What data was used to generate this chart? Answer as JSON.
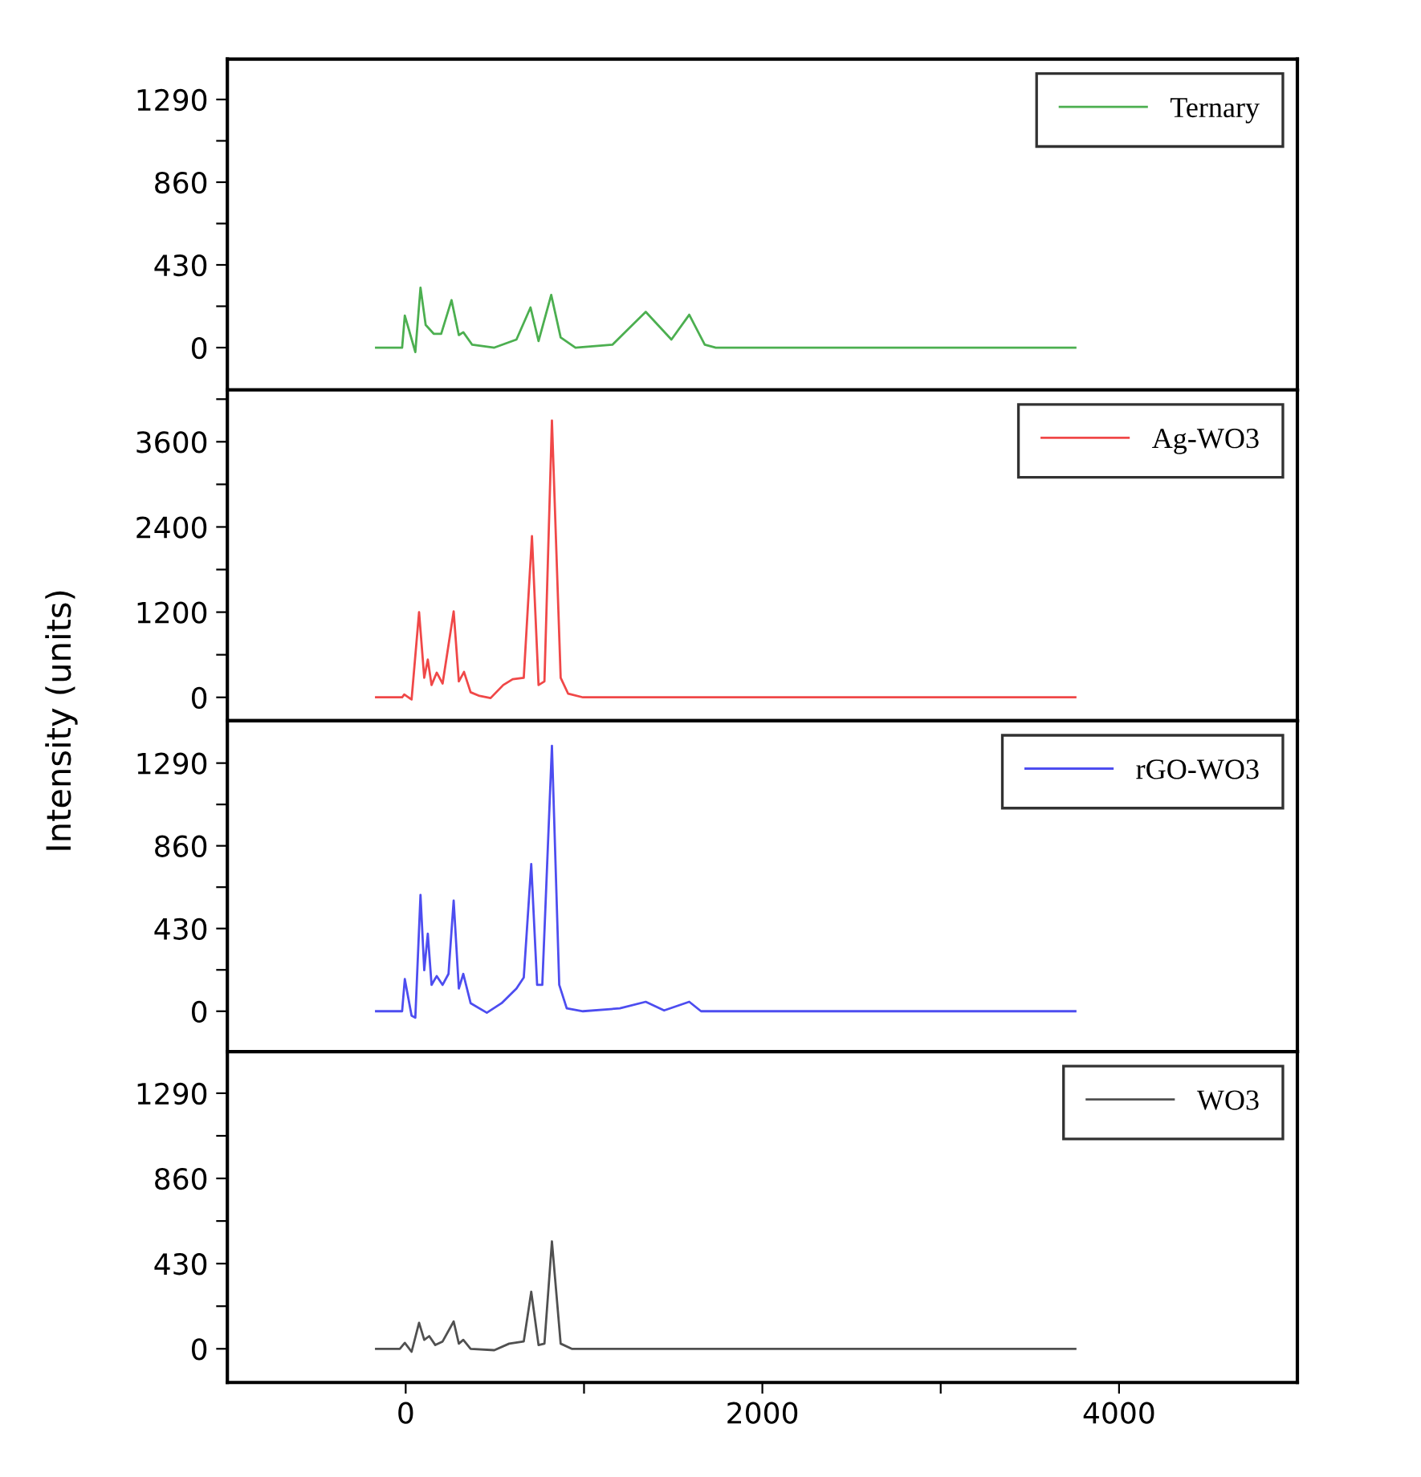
{
  "chart_data": [
    {
      "type": "line",
      "xlim": [
        -1000,
        5000
      ],
      "ylim": [
        -220,
        1500
      ],
      "tick_labels": "y",
      "legend": "top right",
      "xticks": [
        {
          "value": 0,
          "label": null
        },
        {
          "value": 1000,
          "label": null
        },
        {
          "value": 2000,
          "label": null
        },
        {
          "value": 3000,
          "label": null
        },
        {
          "value": 4000,
          "label": null
        }
      ],
      "yticks": [
        0,
        {
          "value": 215,
          "label": null
        },
        430,
        {
          "value": 645,
          "label": null
        },
        860,
        {
          "value": 1075,
          "label": null
        },
        1290
      ],
      "series": [
        {
          "name": "Ternary",
          "color": "#4caf50",
          "x": [
            -166,
            -20,
            -5,
            54,
            83,
            112,
            157,
            199,
            257,
            298,
            323,
            373,
            497,
            621,
            700,
            745,
            816,
            869,
            952,
            1159,
            1242,
            1346,
            1490,
            1590,
            1677,
            1739,
            3755
          ],
          "values": [
            0,
            0,
            167,
            -23,
            312,
            118,
            72,
            72,
            247,
            65,
            80,
            15,
            0,
            42,
            209,
            34,
            274,
            53,
            0,
            15,
            91,
            186,
            42,
            171,
            15,
            0,
            0
          ]
        }
      ]
    },
    {
      "type": "line",
      "xlim": [
        -1000,
        5000
      ],
      "ylim": [
        -330,
        4330
      ],
      "tick_labels": "y",
      "legend": "top right",
      "ylabel": "Intensity (units)",
      "xticks": [
        {
          "value": 0,
          "label": null
        },
        {
          "value": 1000,
          "label": null
        },
        {
          "value": 2000,
          "label": null
        },
        {
          "value": 3000,
          "label": null
        },
        {
          "value": 4000,
          "label": null
        }
      ],
      "yticks": [
        0,
        {
          "value": 600,
          "label": null
        },
        1200,
        {
          "value": 1800,
          "label": null
        },
        2400,
        {
          "value": 3000,
          "label": null
        },
        3600,
        {
          "value": 4200,
          "label": null
        }
      ],
      "series": [
        {
          "name": "Ag-WO3",
          "color": "#f04848",
          "x": [
            -166,
            -20,
            -8,
            33,
            75,
            104,
            124,
            145,
            174,
            207,
            269,
            298,
            327,
            364,
            414,
            476,
            547,
            600,
            662,
            708,
            745,
            778,
            820,
            869,
            911,
            994,
            3755
          ],
          "values": [
            0,
            0,
            40,
            -30,
            1200,
            276,
            532,
            174,
            348,
            194,
            1210,
            225,
            358,
            72,
            20,
            -10,
            174,
            256,
            276,
            2270,
            174,
            225,
            3900,
            276,
            51,
            0,
            0
          ]
        }
      ]
    },
    {
      "type": "line",
      "xlim": [
        -1000,
        5000
      ],
      "ylim": [
        -210,
        1510
      ],
      "tick_labels": "y",
      "legend": "top right",
      "xticks": [
        {
          "value": 0,
          "label": null
        },
        {
          "value": 1000,
          "label": null
        },
        {
          "value": 2000,
          "label": null
        },
        {
          "value": 3000,
          "label": null
        },
        {
          "value": 4000,
          "label": null
        }
      ],
      "yticks": [
        0,
        {
          "value": 215,
          "label": null
        },
        430,
        {
          "value": 645,
          "label": null
        },
        860,
        {
          "value": 1075,
          "label": null
        },
        1290
      ],
      "series": [
        {
          "name": "rGO-WO3",
          "color": "#4d4df0",
          "x": [
            -166,
            -20,
            -5,
            33,
            54,
            83,
            104,
            124,
            145,
            174,
            207,
            240,
            269,
            298,
            323,
            364,
            455,
            538,
            621,
            662,
            704,
            737,
            766,
            820,
            861,
            903,
            994,
            1201,
            1346,
            1449,
            1590,
            1656,
            3755
          ],
          "values": [
            0,
            0,
            167,
            -23,
            -34,
            605,
            213,
            403,
            137,
            183,
            137,
            194,
            575,
            118,
            194,
            42,
            -8,
            42,
            118,
            175,
            765,
            137,
            137,
            1380,
            137,
            15,
            0,
            15,
            49,
            4,
            49,
            0,
            0
          ]
        }
      ]
    },
    {
      "type": "line",
      "xlim": [
        -1000,
        5000
      ],
      "ylim": [
        -170,
        1500
      ],
      "legend": "top right",
      "xticks": [
        0,
        {
          "value": 1000,
          "label": null
        },
        2000,
        {
          "value": 3000,
          "label": null
        },
        4000
      ],
      "yticks": [
        0,
        {
          "value": 215,
          "label": null
        },
        430,
        {
          "value": 645,
          "label": null
        },
        860,
        {
          "value": 1075,
          "label": null
        },
        1290
      ],
      "series": [
        {
          "name": "WO3",
          "color": "#505050",
          "x": [
            -166,
            -33,
            -5,
            33,
            75,
            104,
            132,
            166,
            207,
            269,
            298,
            323,
            364,
            497,
            580,
            662,
            704,
            745,
            778,
            820,
            869,
            931,
            3755
          ],
          "values": [
            0,
            0,
            30,
            -15,
            131,
            45,
            64,
            19,
            37,
            138,
            26,
            45,
            0,
            -7,
            26,
            37,
            288,
            19,
            26,
            542,
            26,
            0,
            0
          ]
        }
      ]
    }
  ]
}
